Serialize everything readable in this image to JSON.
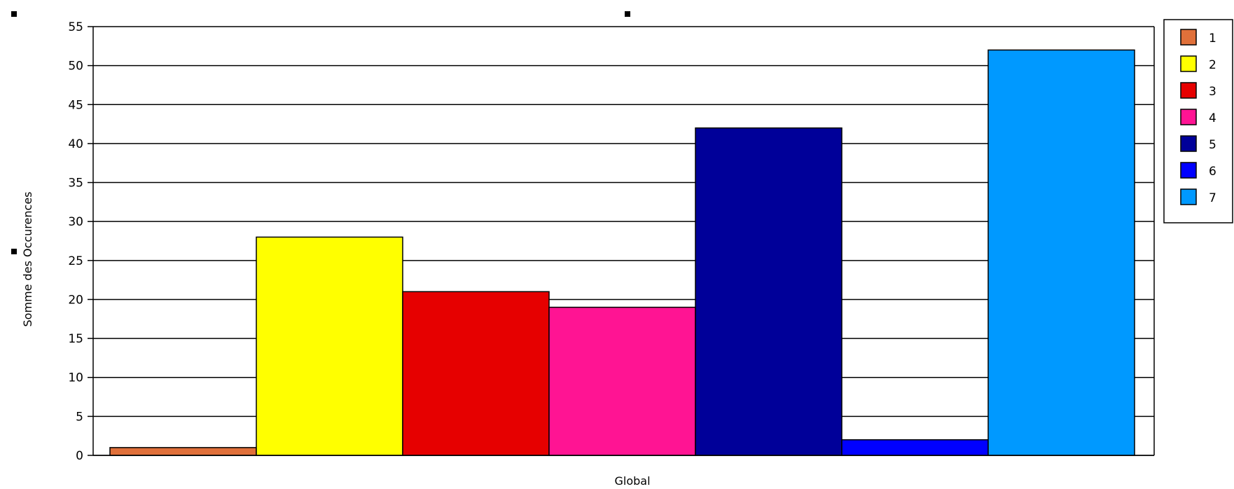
{
  "chart_data": {
    "type": "bar",
    "categories": [
      "Global"
    ],
    "series": [
      {
        "name": "1",
        "values": [
          1
        ],
        "color": "#e0703a"
      },
      {
        "name": "2",
        "values": [
          28
        ],
        "color": "#ffff00"
      },
      {
        "name": "3",
        "values": [
          21
        ],
        "color": "#e60000"
      },
      {
        "name": "4",
        "values": [
          19
        ],
        "color": "#ff1493"
      },
      {
        "name": "5",
        "values": [
          42
        ],
        "color": "#000099"
      },
      {
        "name": "6",
        "values": [
          2
        ],
        "color": "#0000ff"
      },
      {
        "name": "7",
        "values": [
          52
        ],
        "color": "#0099ff"
      }
    ],
    "title": "",
    "xlabel": "Global",
    "ylabel": "Somme des Occurences",
    "ylim": [
      0,
      55
    ],
    "yticks": [
      0,
      5,
      10,
      15,
      20,
      25,
      30,
      35,
      40,
      45,
      50,
      55
    ],
    "grid": true,
    "legend_position": "top-right"
  }
}
